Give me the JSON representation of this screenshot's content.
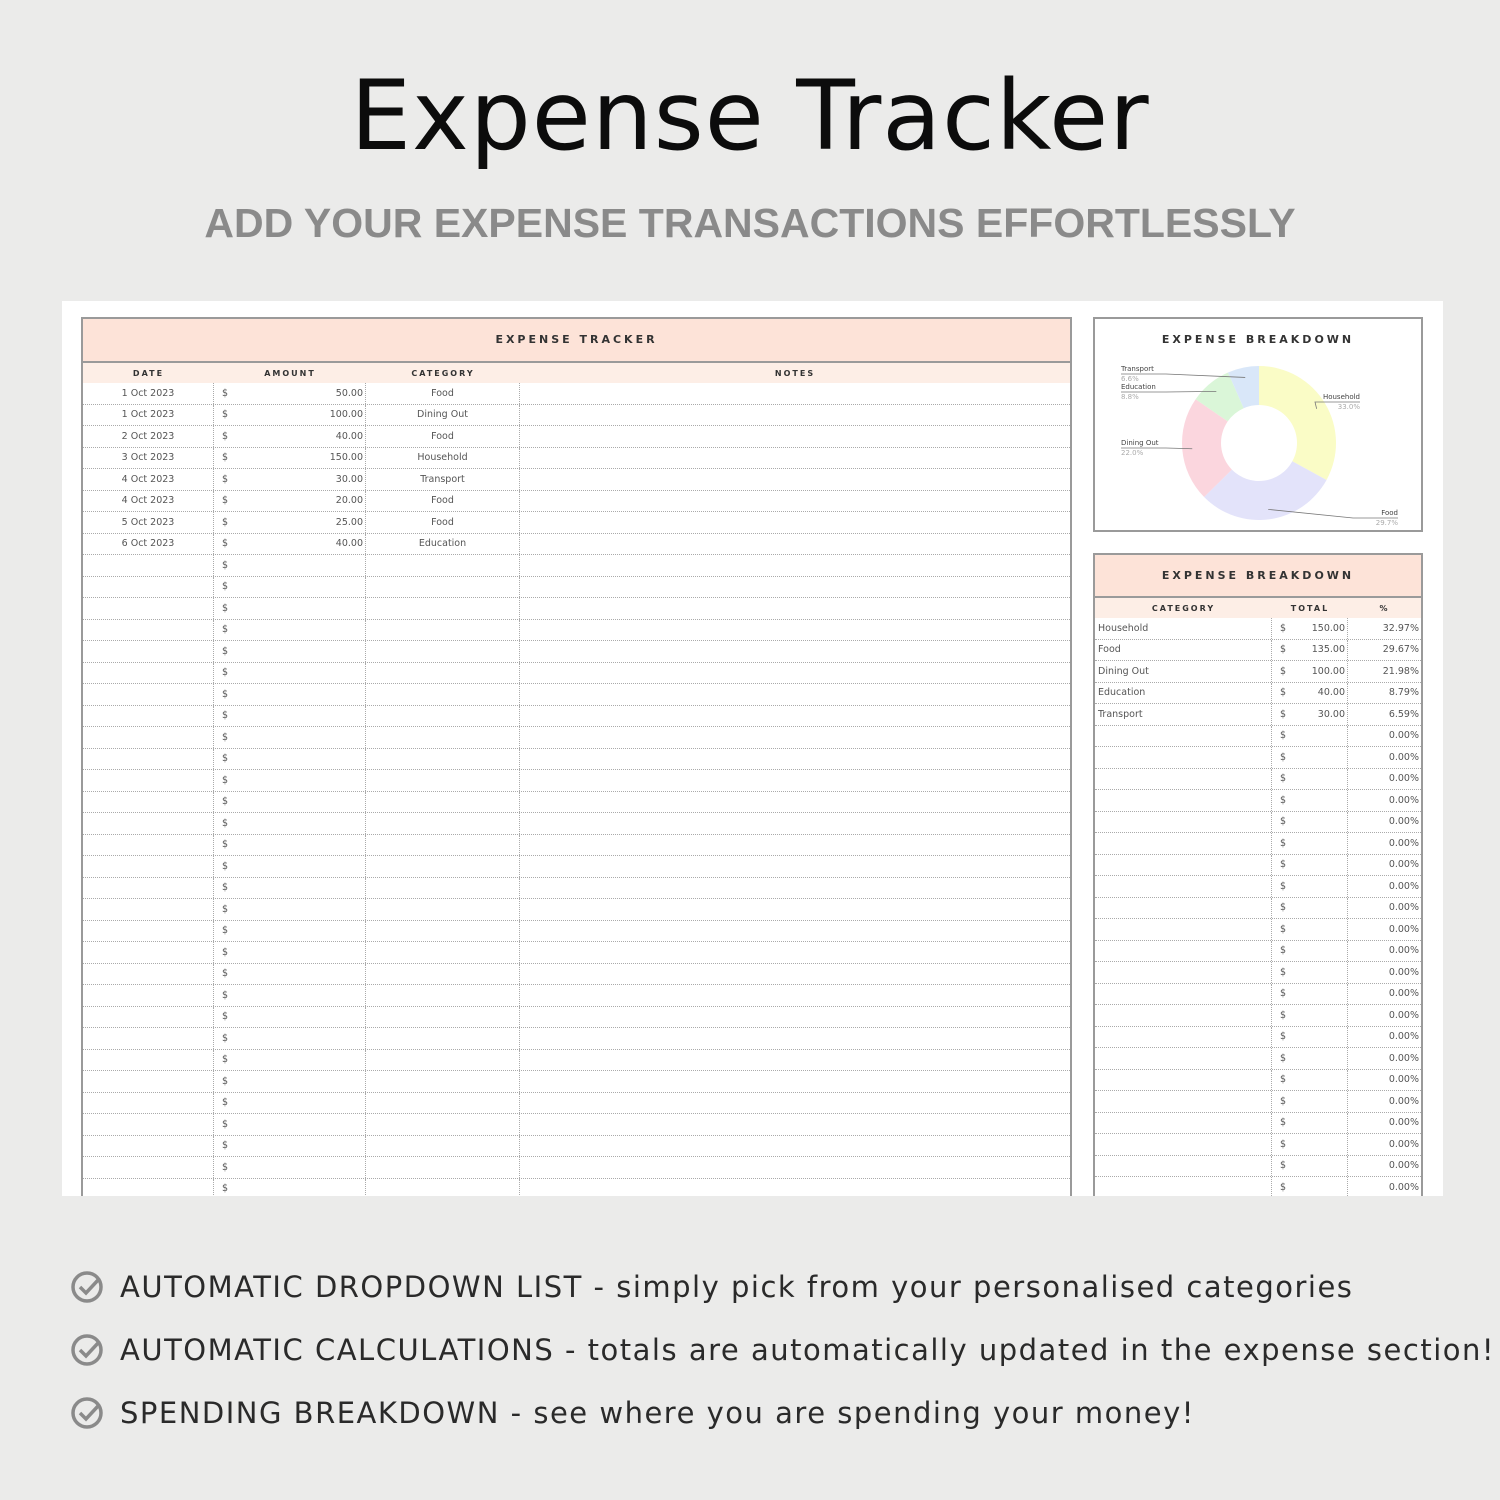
{
  "header": {
    "title": "Expense Tracker",
    "subtitle": "ADD YOUR EXPENSE TRANSACTIONS EFFORTLESSLY"
  },
  "tracker": {
    "title": "EXPENSE TRACKER",
    "columns": [
      "DATE",
      "AMOUNT",
      "CATEGORY",
      "NOTES"
    ],
    "currency": "$",
    "rows": [
      {
        "date": "1 Oct 2023",
        "amount": "50.00",
        "category": "Food",
        "notes": ""
      },
      {
        "date": "1 Oct 2023",
        "amount": "100.00",
        "category": "Dining Out",
        "notes": ""
      },
      {
        "date": "2 Oct 2023",
        "amount": "40.00",
        "category": "Food",
        "notes": ""
      },
      {
        "date": "3 Oct 2023",
        "amount": "150.00",
        "category": "Household",
        "notes": ""
      },
      {
        "date": "4 Oct 2023",
        "amount": "30.00",
        "category": "Transport",
        "notes": ""
      },
      {
        "date": "4 Oct 2023",
        "amount": "20.00",
        "category": "Food",
        "notes": ""
      },
      {
        "date": "5 Oct 2023",
        "amount": "25.00",
        "category": "Food",
        "notes": ""
      },
      {
        "date": "6 Oct 2023",
        "amount": "40.00",
        "category": "Education",
        "notes": ""
      }
    ]
  },
  "chart_data": {
    "type": "pie",
    "title": "EXPENSE BREAKDOWN",
    "donut": true,
    "categories": [
      "Household",
      "Food",
      "Dining Out",
      "Education",
      "Transport"
    ],
    "values": [
      33.0,
      29.7,
      22.0,
      8.8,
      6.6
    ],
    "labels": [
      "33.0%",
      "29.7%",
      "22.0%",
      "8.8%",
      "6.6%"
    ],
    "colors": [
      "#fafcc6",
      "#e3e3fa",
      "#fbd6de",
      "#daf6d8",
      "#d9e7f9"
    ]
  },
  "breakdown": {
    "title": "EXPENSE BREAKDOWN",
    "columns": [
      "CATEGORY",
      "TOTAL",
      "%"
    ],
    "currency": "$",
    "empty_pct": "0.00%",
    "rows": [
      {
        "category": "Household",
        "total": "150.00",
        "pct": "32.97%"
      },
      {
        "category": "Food",
        "total": "135.00",
        "pct": "29.67%"
      },
      {
        "category": "Dining Out",
        "total": "100.00",
        "pct": "21.98%"
      },
      {
        "category": "Education",
        "total": "40.00",
        "pct": "8.79%"
      },
      {
        "category": "Transport",
        "total": "30.00",
        "pct": "6.59%"
      }
    ]
  },
  "features": [
    {
      "bold": "AUTOMATIC DROPDOWN LIST",
      "text": " - simply pick from your personalised categories"
    },
    {
      "bold": "AUTOMATIC CALCULATIONS",
      "text": " - totals are automatically updated in the expense section!"
    },
    {
      "bold": "SPENDING BREAKDOWN",
      "text": " - see where you are spending your money!"
    }
  ]
}
